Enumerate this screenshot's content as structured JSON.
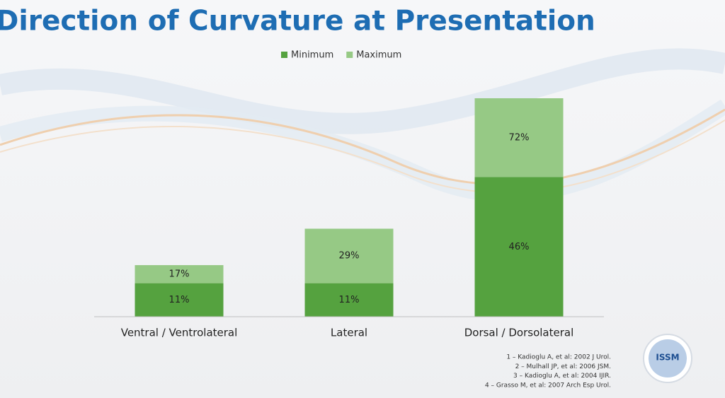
{
  "chart_data": {
    "type": "bar",
    "title": "Direction of Curvature at Presentation",
    "categories": [
      "Ventral / Ventrolateral",
      "Lateral",
      "Dorsal / Dorsolateral"
    ],
    "series": [
      {
        "name": "Minimum",
        "color": "#55a23f",
        "values": [
          11,
          11,
          46
        ],
        "value_labels": [
          "11%",
          "11%",
          "46%"
        ]
      },
      {
        "name": "Maximum",
        "color": "#96c985",
        "values": [
          17,
          29,
          72
        ],
        "value_labels": [
          "17%",
          "29%",
          "72%"
        ]
      }
    ],
    "legend": "top"
  },
  "references": [
    "1 – Kadioglu A, et al: 2002 J Urol.",
    "2 – Mulhall JP, et al: 2006 JSM.",
    "3 – Kadioglu A, et al: 2004 IJIR.",
    "4 – Grasso M, et al: 2007 Arch Esp Urol."
  ],
  "logo": "ISSM"
}
